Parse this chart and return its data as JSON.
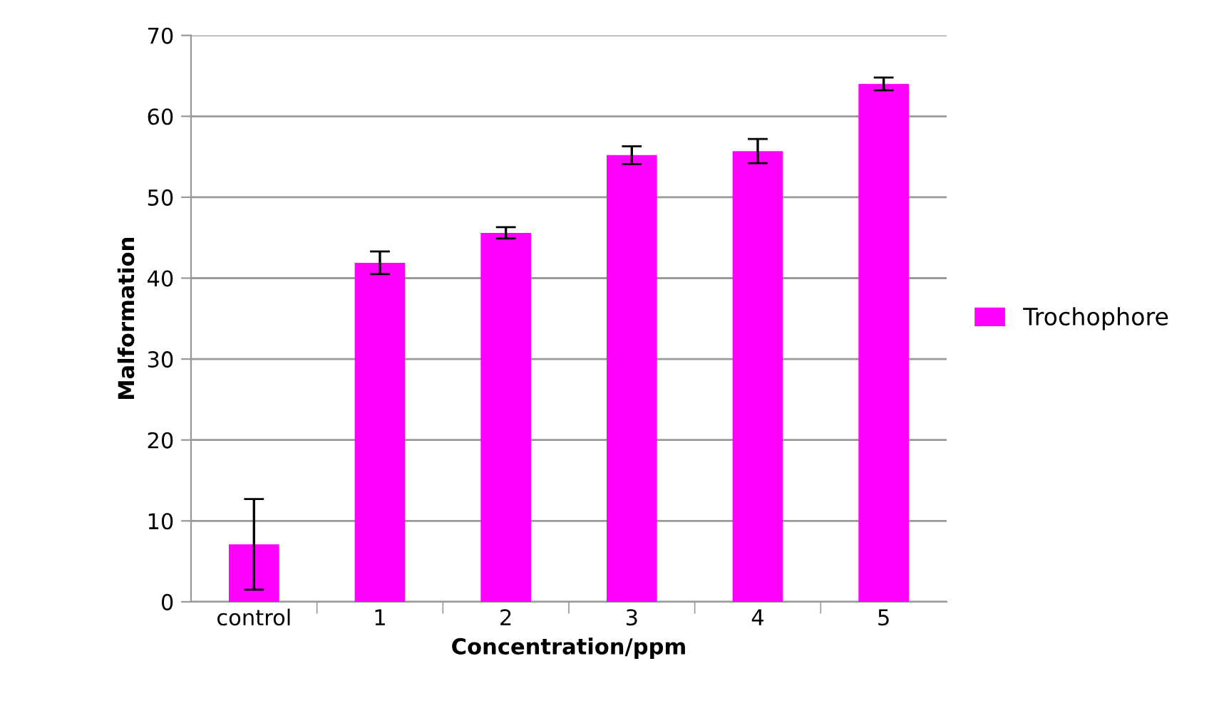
{
  "chart_data": {
    "type": "bar",
    "xlabel": "Concentration/ppm",
    "ylabel": "Malformation",
    "categories": [
      "control",
      "1",
      "2",
      "3",
      "4",
      "5"
    ],
    "series": [
      {
        "name": "Trochophore",
        "color": "#ff00ff",
        "values": [
          7.1,
          41.9,
          45.6,
          55.2,
          55.7,
          64.0
        ],
        "errors": [
          5.6,
          1.4,
          0.7,
          1.1,
          1.5,
          0.8
        ]
      }
    ],
    "ylim": [
      0,
      70
    ],
    "yticks": [
      0,
      10,
      20,
      30,
      40,
      50,
      60,
      70
    ],
    "grid": "y",
    "legend": "right"
  }
}
